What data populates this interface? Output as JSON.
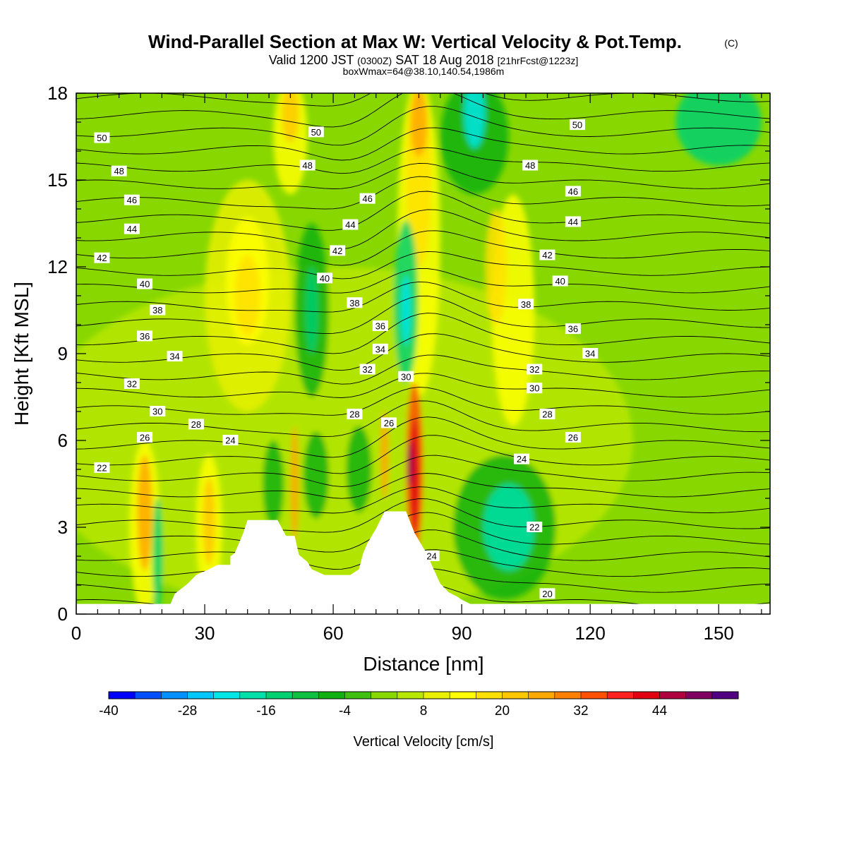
{
  "header": {
    "title": "Wind-Parallel Section at Max W: Vertical Velocity & Pot.Temp.",
    "copyright": "(C)",
    "valid_prefix": "Valid 1200 JST",
    "valid_utc": "(0300Z)",
    "valid_date": "SAT 18 Aug 2018",
    "forecast": "[21hrFcst@1223z]",
    "box_info": "boxWmax=64@38.10,140.54,1986m"
  },
  "chart_data": {
    "type": "heatmap",
    "xlabel": "Distance [nm]",
    "ylabel": "Height [Kft MSL]",
    "xlim": [
      0,
      162
    ],
    "ylim": [
      0,
      18
    ],
    "x_ticks": [
      0,
      30,
      60,
      90,
      120,
      150
    ],
    "y_ticks": [
      0,
      3,
      6,
      9,
      12,
      15,
      18
    ],
    "colorbar": {
      "title": "Vertical Velocity [cm/s]",
      "tick_labels": [
        -40,
        -28,
        -16,
        -4,
        8,
        20,
        32,
        44
      ],
      "colors": [
        "#0000ff",
        "#0050ff",
        "#0090ff",
        "#00c8ff",
        "#00e6e6",
        "#00e0aa",
        "#00d070",
        "#10c040",
        "#10b010",
        "#40c010",
        "#88d800",
        "#b8e800",
        "#e8f000",
        "#ffff00",
        "#ffe000",
        "#ffc800",
        "#ffa800",
        "#ff8000",
        "#ff5000",
        "#ff2020",
        "#e00010",
        "#b00040",
        "#800060",
        "#500080"
      ]
    },
    "theta_contour_labels": [
      {
        "label": "50",
        "x": 6,
        "z": 16.45
      },
      {
        "label": "50",
        "x": 56,
        "z": 16.65
      },
      {
        "label": "50",
        "x": 117,
        "z": 16.9
      },
      {
        "label": "48",
        "x": 10,
        "z": 15.3
      },
      {
        "label": "48",
        "x": 54,
        "z": 15.5
      },
      {
        "label": "48",
        "x": 106,
        "z": 15.5
      },
      {
        "label": "46",
        "x": 13,
        "z": 14.3
      },
      {
        "label": "46",
        "x": 68,
        "z": 14.35
      },
      {
        "label": "46",
        "x": 116,
        "z": 14.6
      },
      {
        "label": "44",
        "x": 13,
        "z": 13.3
      },
      {
        "label": "44",
        "x": 64,
        "z": 13.45
      },
      {
        "label": "44",
        "x": 116,
        "z": 13.55
      },
      {
        "label": "42",
        "x": 6,
        "z": 12.3
      },
      {
        "label": "42",
        "x": 61,
        "z": 12.55
      },
      {
        "label": "42",
        "x": 110,
        "z": 12.4
      },
      {
        "label": "40",
        "x": 16,
        "z": 11.4
      },
      {
        "label": "40",
        "x": 58,
        "z": 11.6
      },
      {
        "label": "40",
        "x": 113,
        "z": 11.5
      },
      {
        "label": "38",
        "x": 19,
        "z": 10.5
      },
      {
        "label": "38",
        "x": 65,
        "z": 10.75
      },
      {
        "label": "38",
        "x": 105,
        "z": 10.7
      },
      {
        "label": "36",
        "x": 16,
        "z": 9.6
      },
      {
        "label": "36",
        "x": 71,
        "z": 9.95
      },
      {
        "label": "36",
        "x": 116,
        "z": 9.85
      },
      {
        "label": "34",
        "x": 23,
        "z": 8.9
      },
      {
        "label": "34",
        "x": 71,
        "z": 9.15
      },
      {
        "label": "34",
        "x": 120,
        "z": 9.0
      },
      {
        "label": "32",
        "x": 13,
        "z": 7.95
      },
      {
        "label": "32",
        "x": 68,
        "z": 8.45
      },
      {
        "label": "32",
        "x": 107,
        "z": 8.45
      },
      {
        "label": "30",
        "x": 19,
        "z": 7.0
      },
      {
        "label": "30",
        "x": 77,
        "z": 8.2
      },
      {
        "label": "30",
        "x": 107,
        "z": 7.8
      },
      {
        "label": "28",
        "x": 28,
        "z": 6.55
      },
      {
        "label": "28",
        "x": 65,
        "z": 6.9
      },
      {
        "label": "28",
        "x": 110,
        "z": 6.9
      },
      {
        "label": "26",
        "x": 16,
        "z": 6.1
      },
      {
        "label": "26",
        "x": 73,
        "z": 6.6
      },
      {
        "label": "26",
        "x": 116,
        "z": 6.1
      },
      {
        "label": "24",
        "x": 36,
        "z": 6.0
      },
      {
        "label": "24",
        "x": 104,
        "z": 5.35
      },
      {
        "label": "24",
        "x": 83,
        "z": 2.0
      },
      {
        "label": "22",
        "x": 6,
        "z": 5.05
      },
      {
        "label": "22",
        "x": 107,
        "z": 3.0
      },
      {
        "label": "20",
        "x": 110,
        "z": 0.7
      }
    ],
    "terrain": [
      [
        0,
        0.35
      ],
      [
        22,
        0.35
      ],
      [
        23,
        0.7
      ],
      [
        26,
        1.05
      ],
      [
        28,
        1.35
      ],
      [
        31,
        1.55
      ],
      [
        33,
        1.7
      ],
      [
        36,
        1.7
      ],
      [
        36,
        2.0
      ],
      [
        37,
        2.1
      ],
      [
        38,
        2.45
      ],
      [
        39,
        2.8
      ],
      [
        40,
        3.25
      ],
      [
        43,
        3.25
      ],
      [
        47,
        3.25
      ],
      [
        49,
        2.7
      ],
      [
        51,
        2.7
      ],
      [
        52,
        2.05
      ],
      [
        54,
        1.8
      ],
      [
        55,
        1.55
      ],
      [
        58,
        1.35
      ],
      [
        64,
        1.35
      ],
      [
        66,
        1.55
      ],
      [
        67,
        2.1
      ],
      [
        68,
        2.45
      ],
      [
        70,
        2.95
      ],
      [
        72,
        3.55
      ],
      [
        77,
        3.55
      ],
      [
        79,
        2.8
      ],
      [
        82,
        2.05
      ],
      [
        83,
        1.7
      ],
      [
        85,
        1.05
      ],
      [
        87,
        0.75
      ],
      [
        89,
        0.6
      ],
      [
        90,
        0.5
      ],
      [
        92,
        0.35
      ],
      [
        162,
        0.35
      ]
    ]
  }
}
